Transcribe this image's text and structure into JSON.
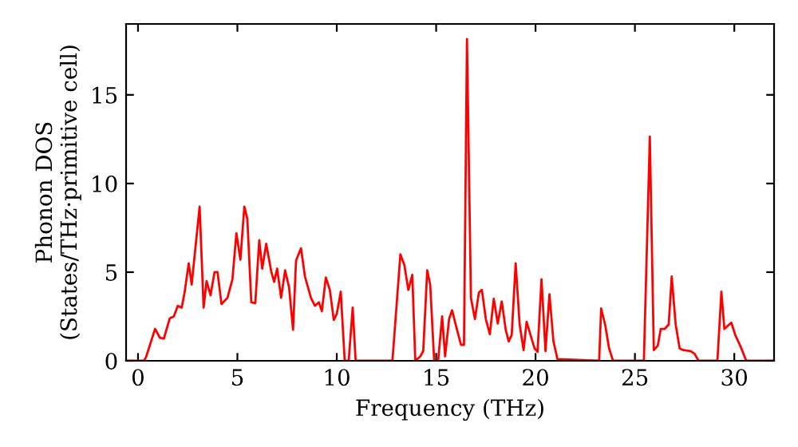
{
  "chart_data": {
    "type": "line",
    "xlabel": "Frequency (THz)",
    "ylabel": "Phonon DOS\n(States/THz·primitive cell)",
    "x": [
      -0.6,
      0.3,
      0.4,
      0.86,
      1.1,
      1.3,
      1.6,
      1.8,
      2.0,
      2.2,
      2.35,
      2.55,
      2.7,
      3.1,
      3.3,
      3.45,
      3.65,
      3.85,
      4.0,
      4.2,
      4.5,
      4.75,
      4.95,
      5.15,
      5.35,
      5.5,
      5.7,
      5.9,
      6.1,
      6.25,
      6.45,
      6.7,
      6.85,
      7.0,
      7.2,
      7.4,
      7.6,
      7.8,
      7.95,
      8.2,
      8.4,
      8.7,
      8.9,
      9.1,
      9.25,
      9.45,
      9.65,
      9.85,
      10.0,
      10.2,
      10.4,
      10.6,
      10.8,
      10.95,
      12.8,
      13.2,
      13.4,
      13.6,
      13.8,
      13.95,
      14.2,
      14.35,
      14.55,
      14.7,
      14.9,
      15.1,
      15.3,
      15.45,
      15.65,
      15.8,
      16.05,
      16.25,
      16.4,
      16.55,
      16.75,
      16.95,
      17.15,
      17.3,
      17.5,
      17.7,
      17.9,
      18.1,
      18.3,
      18.5,
      18.65,
      18.8,
      19.0,
      19.2,
      19.4,
      19.55,
      19.75,
      19.95,
      20.1,
      20.3,
      20.5,
      20.7,
      20.9,
      21.1,
      23.2,
      23.3,
      23.5,
      23.7,
      23.9,
      25.45,
      25.75,
      25.95,
      26.15,
      26.3,
      26.5,
      26.7,
      26.85,
      27.05,
      27.25,
      27.45,
      27.8,
      28.0,
      28.2,
      29.15,
      29.35,
      29.5,
      29.85,
      30.05,
      30.3,
      30.6,
      32.0
    ],
    "series": [
      {
        "color": "#ff0000",
        "values": [
          0,
          0,
          0.2,
          1.8,
          1.3,
          1.25,
          2.4,
          2.5,
          3.1,
          3.0,
          3.9,
          5.5,
          4.3,
          8.7,
          3.0,
          4.5,
          3.7,
          5.0,
          5.0,
          3.2,
          3.55,
          4.6,
          7.2,
          5.7,
          8.7,
          8.0,
          3.3,
          3.25,
          6.8,
          5.2,
          6.6,
          5.05,
          4.45,
          5.2,
          3.55,
          5.1,
          4.15,
          1.75,
          5.65,
          6.35,
          4.75,
          3.55,
          3.1,
          3.3,
          2.8,
          4.7,
          4.0,
          2.3,
          2.65,
          3.9,
          0,
          0,
          3.0,
          0,
          0,
          6.0,
          5.4,
          4.0,
          4.85,
          0,
          0.25,
          0.55,
          5.1,
          4.3,
          0,
          0,
          2.5,
          0.25,
          2.35,
          2.85,
          1.75,
          0.9,
          0.9,
          18.15,
          3.55,
          2.35,
          3.85,
          4.0,
          2.35,
          1.5,
          3.5,
          2.1,
          3.35,
          1.75,
          1.1,
          1.45,
          5.5,
          2.05,
          0.6,
          2.2,
          1.45,
          0.7,
          0.5,
          4.6,
          0.55,
          3.75,
          1.1,
          0.1,
          0,
          2.95,
          2.05,
          0.7,
          0,
          0,
          12.65,
          0.6,
          0.85,
          1.8,
          1.8,
          2.05,
          4.75,
          2.05,
          0.7,
          0.6,
          0.55,
          0.4,
          0,
          0,
          3.9,
          1.8,
          2.15,
          1.45,
          0.85,
          0,
          0
        ]
      }
    ],
    "xlim": [
      -0.6,
      32.0
    ],
    "ylim": [
      0,
      19
    ],
    "xticks": [
      0,
      5,
      10,
      15,
      20,
      25,
      30
    ],
    "yticks": [
      0,
      5,
      10,
      15
    ],
    "grid": false,
    "legend": false,
    "marker": "none",
    "line_style": "solid"
  }
}
